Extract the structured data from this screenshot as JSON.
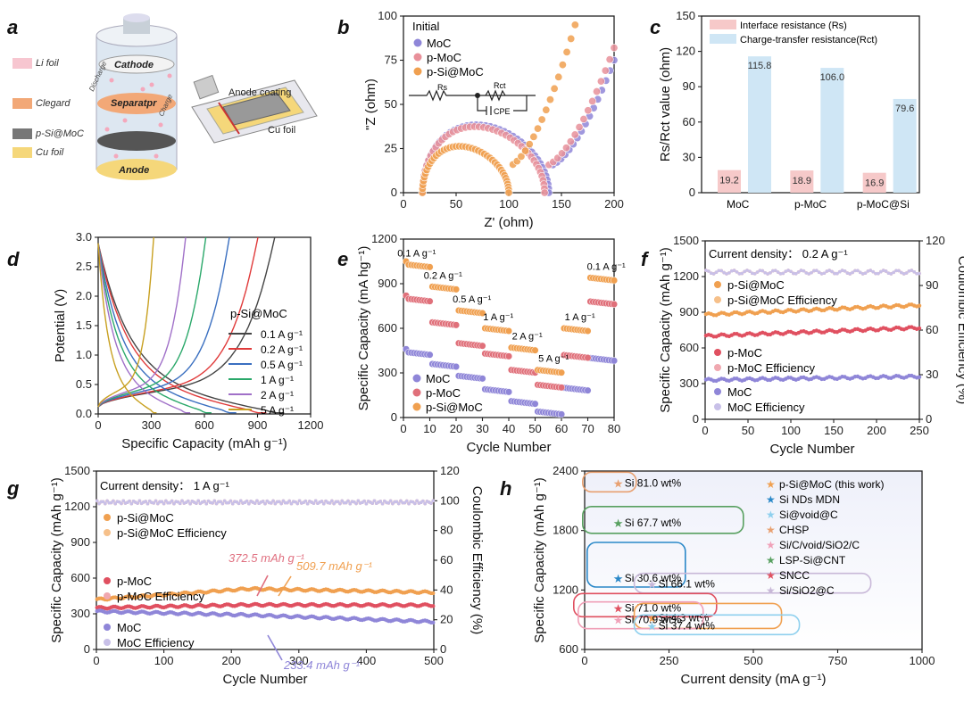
{
  "panels": {
    "a": {
      "label": "a",
      "legend": [
        "Li foil",
        "Clegard",
        "p-Si@MoC",
        "Cu foil"
      ],
      "battery_labels": {
        "cathode": "Cathode",
        "separator": "Separatpr",
        "anode": "Anode",
        "charge": "Charge",
        "discharge": "Discharge"
      },
      "coating_labels": {
        "anode_coating": "Anode coating",
        "cu_foil": "Cu foil"
      }
    },
    "b": {
      "label": "b"
    },
    "c": {
      "label": "c"
    },
    "d": {
      "label": "d"
    },
    "e": {
      "label": "e"
    },
    "f": {
      "label": "f"
    },
    "g": {
      "label": "g"
    },
    "h": {
      "label": "h"
    }
  },
  "chart_data": [
    {
      "id": "b",
      "type": "scatter",
      "xlabel": "Z' (ohm)",
      "ylabel": "\"Z (ohm)",
      "xlim": [
        0,
        200
      ],
      "ylim": [
        0,
        100
      ],
      "xticks": [
        0,
        50,
        100,
        150,
        200
      ],
      "yticks": [
        0,
        25,
        50,
        75,
        100
      ],
      "legend_title": "Initial",
      "circuit_labels": [
        "Rs",
        "Rct",
        "CPE"
      ],
      "series": [
        {
          "name": "MoC",
          "color": "#8f86d8",
          "semicircle": {
            "x0": 18,
            "x1": 138,
            "h": 38
          },
          "tail": {
            "x_end": 200,
            "y_end": 75
          }
        },
        {
          "name": "p-MoC",
          "color": "#e8909a",
          "semicircle": {
            "x0": 18,
            "x1": 134,
            "h": 37
          },
          "tail": {
            "x_end": 200,
            "y_end": 82
          }
        },
        {
          "name": "p-Si@MoC",
          "color": "#f0a050",
          "semicircle": {
            "x0": 18,
            "x1": 100,
            "h": 26
          },
          "tail": {
            "x_end": 163,
            "y_end": 95
          }
        }
      ]
    },
    {
      "id": "c",
      "type": "bar",
      "ylabel": "Rs/Rct value (ohm)",
      "ylim": [
        0,
        150
      ],
      "yticks": [
        0,
        30,
        60,
        90,
        120,
        150
      ],
      "categories": [
        "MoC",
        "p-MoC",
        "p-MoC@Si"
      ],
      "series": [
        {
          "name": "Interface resistance (Rs)",
          "color": "#f6c9c9",
          "values": [
            19.2,
            18.9,
            16.9
          ]
        },
        {
          "name": "Charge-transfer resistance(Rct)",
          "color": "#cfe6f5",
          "values": [
            115.8,
            106.0,
            79.6
          ]
        }
      ],
      "value_labels": [
        [
          "19.2",
          "18.9",
          "16.9"
        ],
        [
          "115.8",
          "106.0",
          "79.6"
        ]
      ]
    },
    {
      "id": "d",
      "type": "line",
      "xlabel": "Specific Capacity (mAh g-1)",
      "ylabel": "Potential (V)",
      "xlim": [
        0,
        1200
      ],
      "ylim": [
        0,
        3.0
      ],
      "xticks": [
        0,
        300,
        600,
        900,
        1200
      ],
      "yticks": [
        0.0,
        0.5,
        1.0,
        1.5,
        2.0,
        2.5,
        3.0
      ],
      "legend_title": "p-Si@MoC",
      "series": [
        {
          "name": "0.1 A g-1",
          "color": "#444444",
          "cap": 1050
        },
        {
          "name": "0.2 A g-1",
          "color": "#e03a3a",
          "cap": 950
        },
        {
          "name": "0.5 A g-1",
          "color": "#3a6fc0",
          "cap": 780
        },
        {
          "name": "1 A g-1",
          "color": "#2aa86a",
          "cap": 640
        },
        {
          "name": "2 A g-1",
          "color": "#a070c8",
          "cap": 520
        },
        {
          "name": "5 A g-1",
          "color": "#c8a020",
          "cap": 330
        }
      ]
    },
    {
      "id": "e",
      "type": "scatter",
      "xlabel": "Cycle Number",
      "ylabel": "Specific Capacity (mA hg-1)",
      "xlim": [
        0,
        80
      ],
      "ylim": [
        0,
        1200
      ],
      "xticks": [
        0,
        10,
        20,
        30,
        40,
        50,
        60,
        70,
        80
      ],
      "yticks": [
        0,
        300,
        600,
        900,
        1200
      ],
      "rate_labels": [
        "0.1 A g-1",
        "0.2 A g-1",
        "0.5 A g-1",
        "1 A g-1",
        "2 A g-1",
        "5 A g-1",
        "1 A g-1",
        "0.1 A g-1"
      ],
      "series": [
        {
          "name": "MoC",
          "color": "#8f86d8",
          "steps": [
            440,
            360,
            280,
            190,
            110,
            40,
            200,
            400
          ]
        },
        {
          "name": "p-MoC",
          "color": "#e0707a",
          "steps": [
            800,
            640,
            500,
            430,
            320,
            220,
            420,
            780
          ]
        },
        {
          "name": "p-Si@MoC",
          "color": "#f0a050",
          "steps": [
            1030,
            880,
            720,
            600,
            470,
            320,
            600,
            940
          ]
        }
      ]
    },
    {
      "id": "f",
      "type": "scatter",
      "xlabel": "Cycle Number",
      "ylabel": "Specific Capacity (mAh g-1)",
      "y2label": "Coulombic Efficiency (%)",
      "xlim": [
        0,
        250
      ],
      "ylim": [
        0,
        1500
      ],
      "y2lim": [
        0,
        120
      ],
      "xticks": [
        0,
        50,
        100,
        150,
        200,
        250
      ],
      "yticks": [
        0,
        300,
        600,
        900,
        1200,
        1500
      ],
      "y2ticks": [
        0,
        30,
        60,
        90,
        120
      ],
      "note": "Current density： 0.2 A g-1",
      "series": [
        {
          "name": "p-Si@MoC",
          "color": "#f0a050",
          "start": 880,
          "end": 960
        },
        {
          "name": "p-Si@MoC Efficiency",
          "color": "#f6c08a",
          "efficiency": 99
        },
        {
          "name": "p-MoC",
          "color": "#e05060",
          "start": 700,
          "end": 770
        },
        {
          "name": "p-MoC Efficiency",
          "color": "#f0a8b0",
          "efficiency": 99
        },
        {
          "name": "MoC",
          "color": "#8f86d8",
          "start": 330,
          "end": 360
        },
        {
          "name": "MoC Efficiency",
          "color": "#c8c0e8",
          "efficiency": 99
        }
      ]
    },
    {
      "id": "g",
      "type": "scatter",
      "xlabel": "Cycle Number",
      "ylabel": "Specific Capacity (mAh g-1)",
      "y2label": "Coulombic Efficiency (%)",
      "xlim": [
        0,
        500
      ],
      "ylim": [
        0,
        1500
      ],
      "y2lim": [
        0,
        120
      ],
      "xticks": [
        0,
        100,
        200,
        300,
        400,
        500
      ],
      "yticks": [
        0,
        300,
        600,
        900,
        1200,
        1500
      ],
      "y2ticks": [
        0,
        20,
        40,
        60,
        80,
        100,
        120
      ],
      "note": "Current density： 1 A g-1",
      "annotations": [
        {
          "text": "372.5 mAh g-1",
          "color": "#e07080"
        },
        {
          "text": "509.7 mAh g-1",
          "color": "#f0a050"
        },
        {
          "text": "233.4 mAh g-1",
          "color": "#8f86d8"
        }
      ],
      "series": [
        {
          "name": "p-Si@MoC",
          "color": "#f0a050",
          "start": 420,
          "peak": 510,
          "end": 480
        },
        {
          "name": "p-Si@MoC Efficiency",
          "color": "#f6c08a",
          "efficiency": 99
        },
        {
          "name": "p-MoC",
          "color": "#e05060",
          "start": 350,
          "peak": 375,
          "end": 372
        },
        {
          "name": "p-MoC Efficiency",
          "color": "#f0a8b0",
          "efficiency": 99
        },
        {
          "name": "MoC",
          "color": "#8f86d8",
          "start": 320,
          "peak": 290,
          "end": 233
        },
        {
          "name": "MoC Efficiency",
          "color": "#c8c0e8",
          "efficiency": 99
        }
      ]
    },
    {
      "id": "h",
      "type": "scatter",
      "xlabel": "Current density (mA g-1)",
      "ylabel": "Specific Capacity (mAh g-1)",
      "xlim": [
        0,
        1000
      ],
      "ylim": [
        600,
        2400
      ],
      "xticks": [
        0,
        250,
        500,
        750,
        1000
      ],
      "yticks": [
        600,
        1200,
        1800,
        2400
      ],
      "legend": [
        {
          "name": "p-Si@MoC (this work)",
          "color": "#f0a050"
        },
        {
          "name": "Si NDs MDN",
          "color": "#2a88c8"
        },
        {
          "name": "Si@void@C",
          "color": "#8ed0ee"
        },
        {
          "name": "CHSP",
          "color": "#e8a070"
        },
        {
          "name": "Si/C/void/SiO2/C",
          "color": "#f0a0b8"
        },
        {
          "name": "LSP-Si@CNT",
          "color": "#58a060"
        },
        {
          "name": "SNCC",
          "color": "#e05060"
        },
        {
          "name": "Si/SiO2@C",
          "color": "#c8b8d8"
        }
      ],
      "points": [
        {
          "label": "Si 81.0 wt%",
          "x": 100,
          "y": 2280,
          "color": "#e8a070"
        },
        {
          "label": "Si 67.7 wt%",
          "x": 100,
          "y": 1880,
          "color": "#58a060"
        },
        {
          "label": "Si 30.6 wt%",
          "x": 100,
          "y": 1320,
          "color": "#2a88c8"
        },
        {
          "label": "Si 66.1 wt%",
          "x": 200,
          "y": 1260,
          "color": "#c8b8d8"
        },
        {
          "label": "Si 71.0 wt%",
          "x": 100,
          "y": 1020,
          "color": "#e05060"
        },
        {
          "label": "Si 4.3 wt%",
          "x": 200,
          "y": 920,
          "color": "#f0a050"
        },
        {
          "label": "Si 70.9 wt%",
          "x": 100,
          "y": 900,
          "color": "#f0a0b8"
        },
        {
          "label": "Si 37.4 wt%",
          "x": 200,
          "y": 840,
          "color": "#8ed0ee"
        }
      ]
    }
  ]
}
